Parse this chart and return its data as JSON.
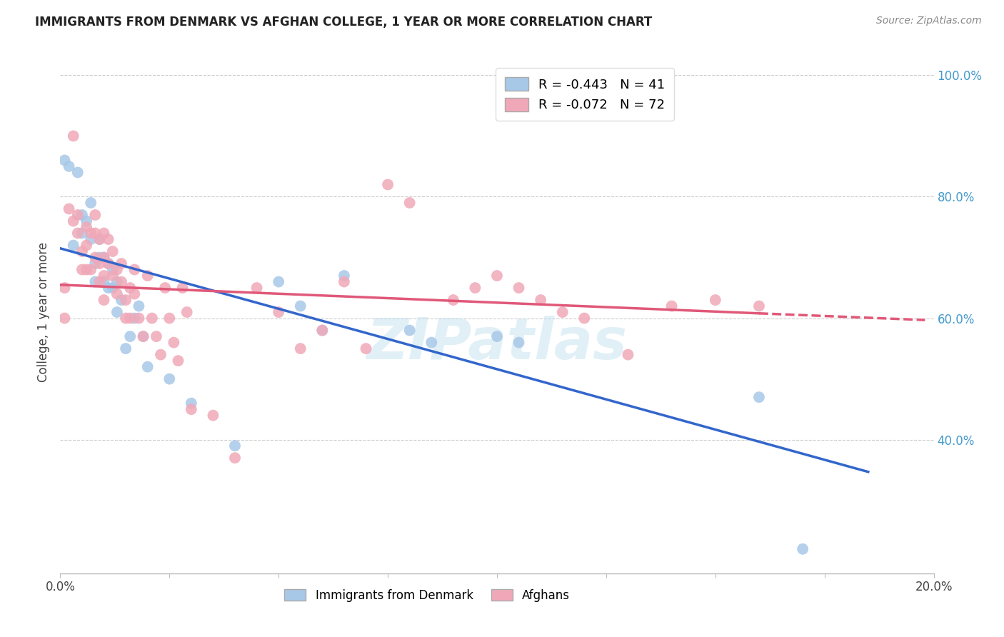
{
  "title": "IMMIGRANTS FROM DENMARK VS AFGHAN COLLEGE, 1 YEAR OR MORE CORRELATION CHART",
  "source": "Source: ZipAtlas.com",
  "ylabel": "College, 1 year or more",
  "legend_labels": [
    "Immigrants from Denmark",
    "Afghans"
  ],
  "r_denmark": -0.443,
  "n_denmark": 41,
  "r_afghan": -0.072,
  "n_afghan": 72,
  "xlim": [
    0.0,
    0.2
  ],
  "ylim": [
    0.18,
    1.04
  ],
  "color_denmark": "#a8c8e8",
  "color_afghan": "#f0a8b8",
  "line_color_denmark": "#3366cc",
  "line_color_afghan": "#e05878",
  "watermark_color": "#c8e4f0",
  "denmark_x": [
    0.001,
    0.002,
    0.003,
    0.004,
    0.005,
    0.005,
    0.006,
    0.007,
    0.007,
    0.008,
    0.008,
    0.009,
    0.009,
    0.01,
    0.01,
    0.011,
    0.011,
    0.012,
    0.012,
    0.013,
    0.013,
    0.014,
    0.015,
    0.016,
    0.017,
    0.018,
    0.019,
    0.02,
    0.025,
    0.03,
    0.04,
    0.05,
    0.055,
    0.06,
    0.065,
    0.08,
    0.085,
    0.1,
    0.105,
    0.16,
    0.17
  ],
  "denmark_y": [
    0.86,
    0.85,
    0.72,
    0.84,
    0.77,
    0.74,
    0.76,
    0.79,
    0.73,
    0.69,
    0.66,
    0.73,
    0.7,
    0.7,
    0.66,
    0.69,
    0.65,
    0.68,
    0.65,
    0.66,
    0.61,
    0.63,
    0.55,
    0.57,
    0.6,
    0.62,
    0.57,
    0.52,
    0.5,
    0.46,
    0.39,
    0.66,
    0.62,
    0.58,
    0.67,
    0.58,
    0.56,
    0.57,
    0.56,
    0.47,
    0.22
  ],
  "afghan_x": [
    0.001,
    0.001,
    0.002,
    0.003,
    0.003,
    0.004,
    0.004,
    0.005,
    0.005,
    0.006,
    0.006,
    0.006,
    0.007,
    0.007,
    0.008,
    0.008,
    0.008,
    0.009,
    0.009,
    0.009,
    0.01,
    0.01,
    0.01,
    0.01,
    0.011,
    0.011,
    0.012,
    0.012,
    0.013,
    0.013,
    0.014,
    0.014,
    0.015,
    0.015,
    0.016,
    0.016,
    0.017,
    0.017,
    0.018,
    0.019,
    0.02,
    0.021,
    0.022,
    0.023,
    0.024,
    0.025,
    0.026,
    0.027,
    0.028,
    0.029,
    0.03,
    0.035,
    0.04,
    0.045,
    0.05,
    0.055,
    0.06,
    0.065,
    0.07,
    0.075,
    0.08,
    0.09,
    0.095,
    0.1,
    0.105,
    0.11,
    0.115,
    0.12,
    0.13,
    0.14,
    0.15,
    0.16
  ],
  "afghan_y": [
    0.65,
    0.6,
    0.78,
    0.9,
    0.76,
    0.77,
    0.74,
    0.71,
    0.68,
    0.75,
    0.72,
    0.68,
    0.74,
    0.68,
    0.77,
    0.74,
    0.7,
    0.73,
    0.69,
    0.66,
    0.74,
    0.7,
    0.67,
    0.63,
    0.73,
    0.69,
    0.71,
    0.67,
    0.68,
    0.64,
    0.69,
    0.66,
    0.63,
    0.6,
    0.65,
    0.6,
    0.68,
    0.64,
    0.6,
    0.57,
    0.67,
    0.6,
    0.57,
    0.54,
    0.65,
    0.6,
    0.56,
    0.53,
    0.65,
    0.61,
    0.45,
    0.44,
    0.37,
    0.65,
    0.61,
    0.55,
    0.58,
    0.66,
    0.55,
    0.82,
    0.79,
    0.63,
    0.65,
    0.67,
    0.65,
    0.63,
    0.61,
    0.6,
    0.54,
    0.62,
    0.63,
    0.62
  ],
  "regression_denmark_x0": 0.0,
  "regression_denmark_x1": 0.185,
  "regression_denmark_y0": 0.715,
  "regression_denmark_y1": 0.347,
  "regression_afghan_x0": 0.0,
  "regression_afghan_x1": 0.16,
  "regression_afghan_y0": 0.655,
  "regression_afghan_y1": 0.608,
  "regression_afghan_ext_x0": 0.16,
  "regression_afghan_ext_x1": 0.198,
  "regression_afghan_ext_y0": 0.608,
  "regression_afghan_ext_y1": 0.597
}
